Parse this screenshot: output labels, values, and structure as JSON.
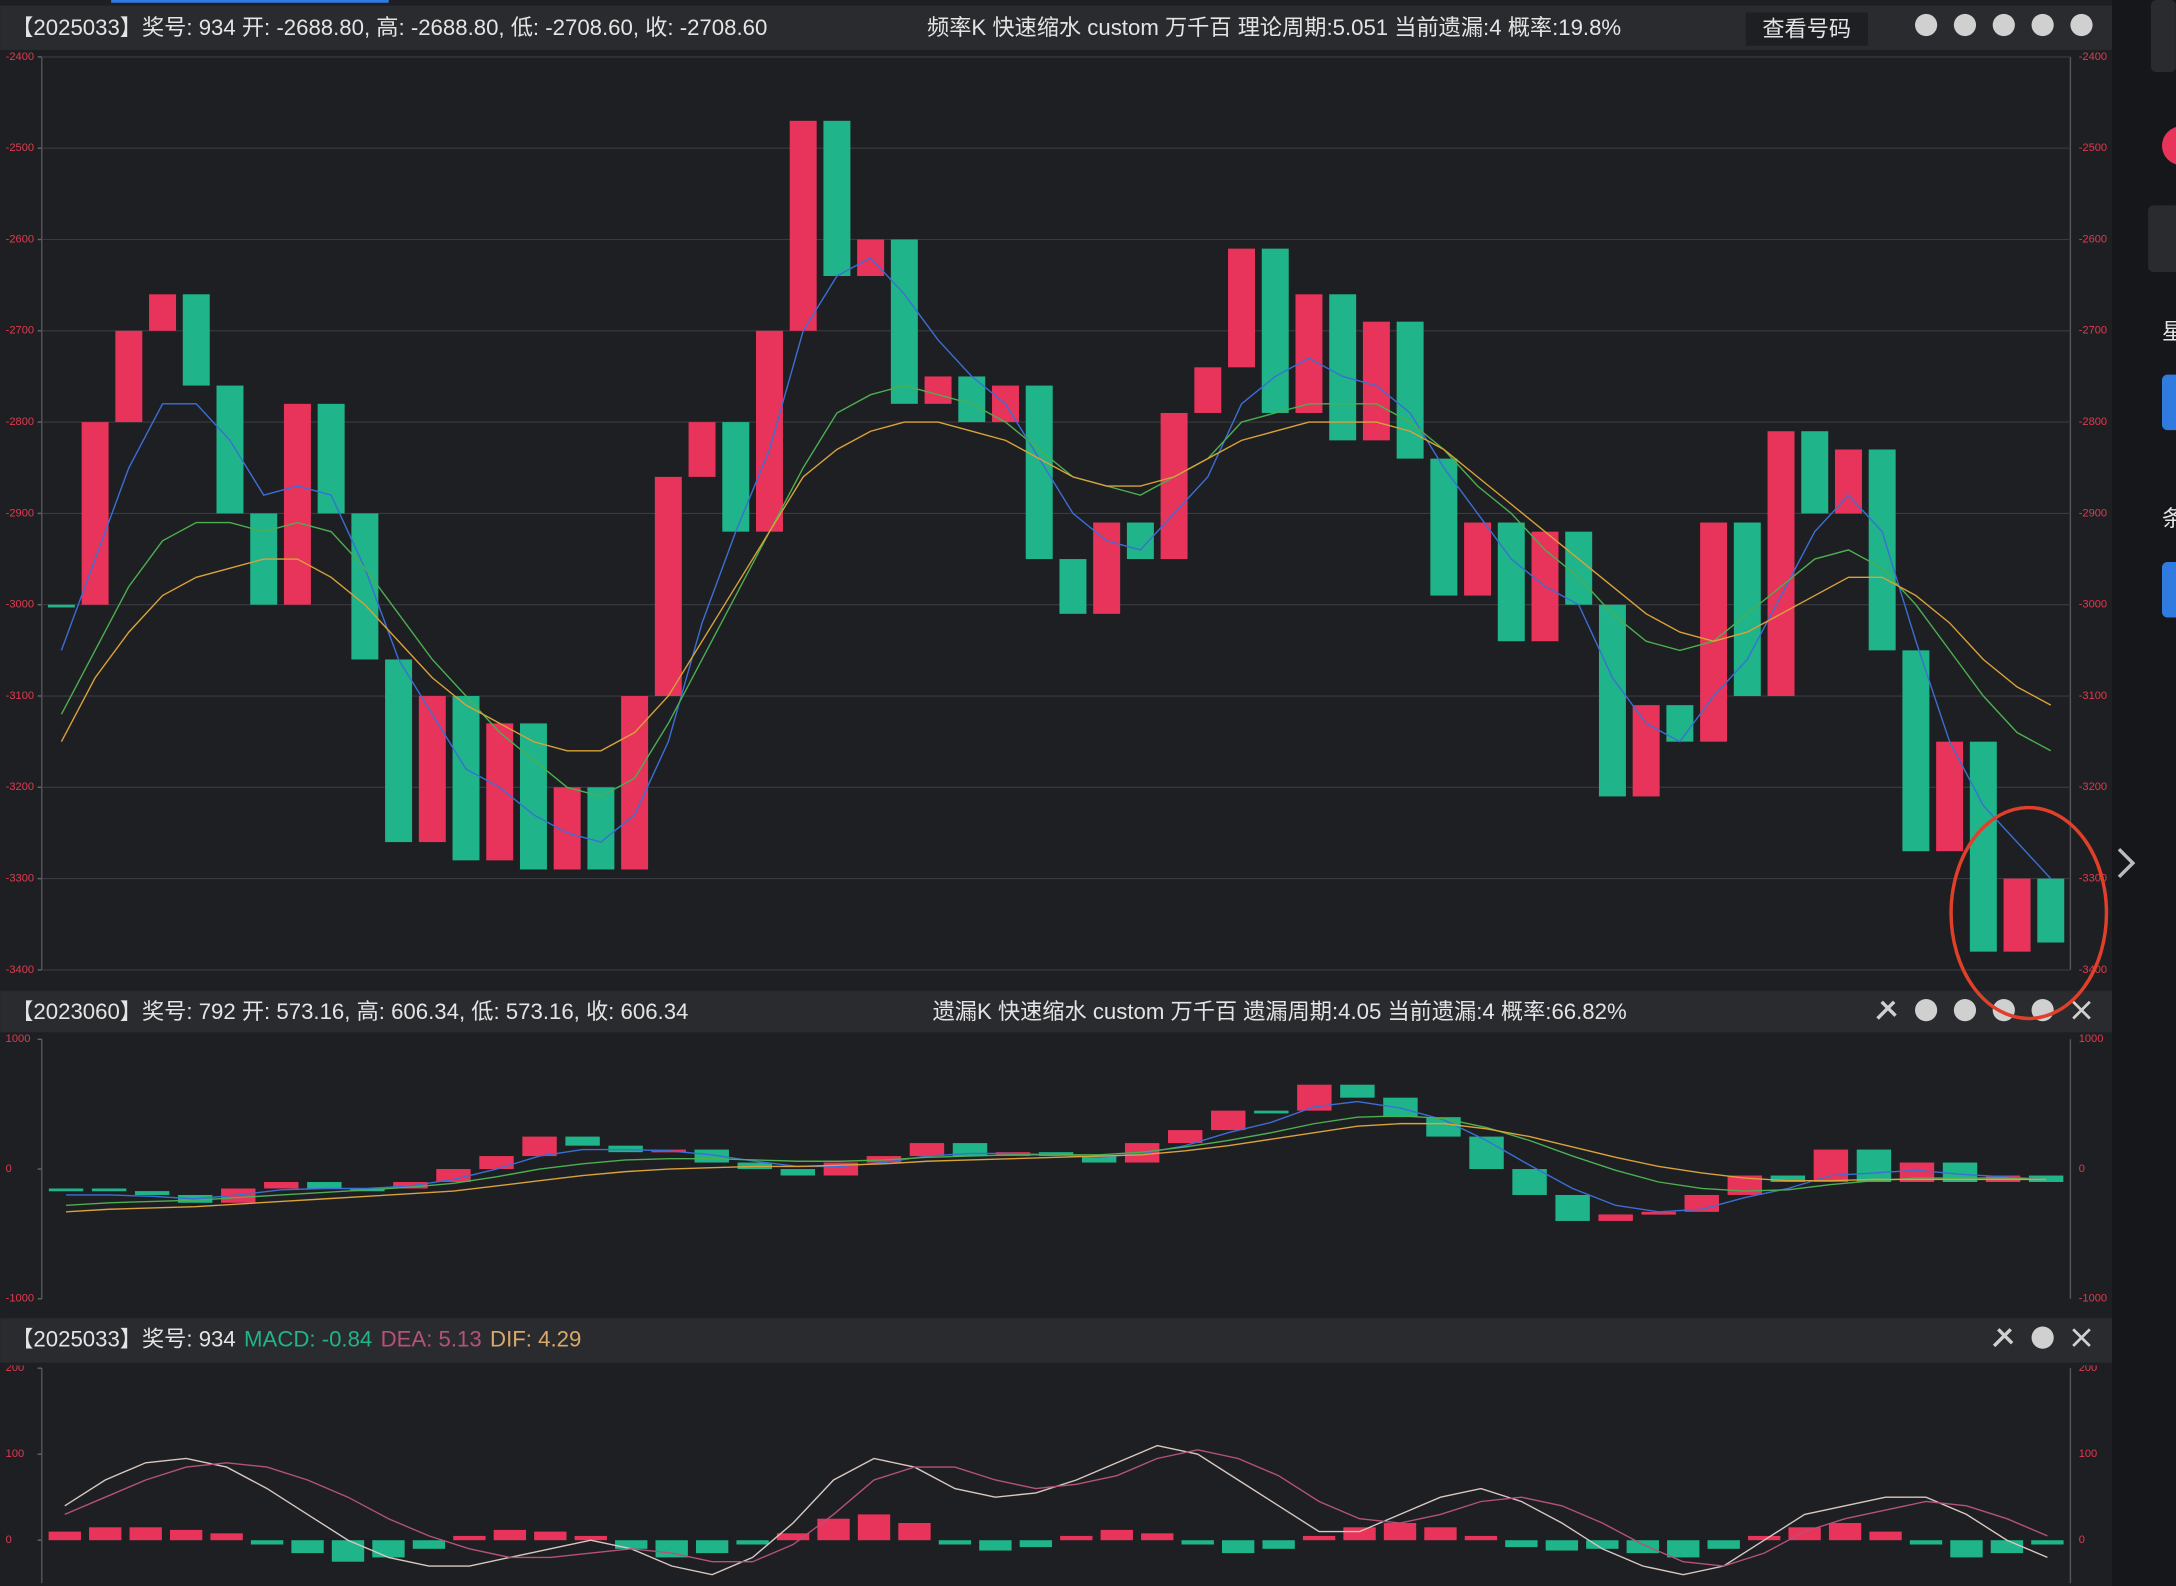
{
  "chart_data": [
    {
      "type": "step",
      "title": "【2025033】奖号: 934  开: -2688.80, 高: -2688.80, 低: -2708.60, 收: -2708.60",
      "subtitle": "频率K  快速缩水  custom  万千百  理论周期:5.051  当前遗漏:4  概率:19.8%",
      "button": "查看号码",
      "ylim": [
        -3400,
        -2400
      ],
      "yticks": [
        -2400,
        -2500,
        -2600,
        -2700,
        -2800,
        -2900,
        -3000,
        -3100,
        -3200,
        -3300,
        -3400
      ],
      "grid": true,
      "series": [
        {
          "up_color": "#e8335a",
          "down_color": "#1fb489",
          "values": [
            -3000,
            -2800,
            -2700,
            -2660,
            -2760,
            -2900,
            -3000,
            -2780,
            -2900,
            -3060,
            -3260,
            -3100,
            -3280,
            -3130,
            -3290,
            -3200,
            -3290,
            -3100,
            -2860,
            -2800,
            -2920,
            -2700,
            -2470,
            -2640,
            -2600,
            -2780,
            -2750,
            -2800,
            -2760,
            -2950,
            -3010,
            -2910,
            -2950,
            -2790,
            -2740,
            -2610,
            -2790,
            -2660,
            -2820,
            -2690,
            -2840,
            -2990,
            -2910,
            -3040,
            -2920,
            -3000,
            -3210,
            -3110,
            -3150,
            -2910,
            -3100,
            -2810,
            -2900,
            -2830,
            -3050,
            -3270,
            -3150,
            -3380,
            -3300,
            -3370
          ]
        },
        {
          "color": "#3b6fd6",
          "values": [
            -3050,
            -2950,
            -2850,
            -2780,
            -2780,
            -2820,
            -2880,
            -2870,
            -2880,
            -2960,
            -3060,
            -3120,
            -3180,
            -3200,
            -3230,
            -3250,
            -3260,
            -3230,
            -3150,
            -3020,
            -2920,
            -2830,
            -2700,
            -2640,
            -2620,
            -2660,
            -2710,
            -2750,
            -2780,
            -2840,
            -2900,
            -2930,
            -2940,
            -2900,
            -2860,
            -2780,
            -2750,
            -2730,
            -2750,
            -2760,
            -2790,
            -2850,
            -2900,
            -2950,
            -2980,
            -3000,
            -3080,
            -3130,
            -3150,
            -3100,
            -3060,
            -2990,
            -2920,
            -2880,
            -2920,
            -3040,
            -3150,
            -3220,
            -3260,
            -3300
          ]
        },
        {
          "color": "#4caf50",
          "values": [
            -3120,
            -3050,
            -2980,
            -2930,
            -2910,
            -2910,
            -2920,
            -2910,
            -2920,
            -2960,
            -3010,
            -3060,
            -3100,
            -3140,
            -3170,
            -3200,
            -3210,
            -3190,
            -3130,
            -3060,
            -2990,
            -2920,
            -2850,
            -2790,
            -2770,
            -2760,
            -2770,
            -2780,
            -2800,
            -2830,
            -2860,
            -2870,
            -2880,
            -2860,
            -2840,
            -2800,
            -2790,
            -2780,
            -2780,
            -2780,
            -2800,
            -2830,
            -2870,
            -2900,
            -2940,
            -2970,
            -3010,
            -3040,
            -3050,
            -3040,
            -3010,
            -2980,
            -2950,
            -2940,
            -2960,
            -3000,
            -3050,
            -3100,
            -3140,
            -3160
          ]
        },
        {
          "color": "#d9a23a",
          "values": [
            -3150,
            -3080,
            -3030,
            -2990,
            -2970,
            -2960,
            -2950,
            -2950,
            -2970,
            -3000,
            -3040,
            -3080,
            -3110,
            -3130,
            -3150,
            -3160,
            -3160,
            -3140,
            -3100,
            -3040,
            -2980,
            -2920,
            -2860,
            -2830,
            -2810,
            -2800,
            -2800,
            -2810,
            -2820,
            -2840,
            -2860,
            -2870,
            -2870,
            -2860,
            -2840,
            -2820,
            -2810,
            -2800,
            -2800,
            -2800,
            -2810,
            -2830,
            -2860,
            -2890,
            -2920,
            -2950,
            -2980,
            -3010,
            -3030,
            -3040,
            -3030,
            -3010,
            -2990,
            -2970,
            -2970,
            -2990,
            -3020,
            -3060,
            -3090,
            -3110
          ]
        }
      ]
    },
    {
      "type": "step",
      "title": "【2023060】奖号: 792  开: 573.16, 高: 606.34, 低: 573.16, 收: 606.34",
      "subtitle": "遗漏K  快速缩水  custom  万千百  遗漏周期:4.05  当前遗漏:4  概率:66.82%",
      "ylim": [
        -1000,
        1000
      ],
      "yticks": [
        1000,
        0,
        -1000
      ],
      "grid": false,
      "series": [
        {
          "up_color": "#e8335a",
          "down_color": "#1fb489",
          "values": [
            -150,
            -170,
            -200,
            -260,
            -150,
            -100,
            -150,
            -150,
            -100,
            0,
            100,
            250,
            180,
            130,
            150,
            50,
            0,
            -50,
            50,
            100,
            200,
            100,
            130,
            100,
            50,
            200,
            300,
            450,
            450,
            650,
            550,
            400,
            250,
            0,
            -200,
            -400,
            -350,
            -330,
            -200,
            -50,
            -100,
            150,
            -100,
            50,
            -100,
            -50,
            -100
          ]
        },
        {
          "color": "#3b6fd6",
          "values": [
            -200,
            -200,
            -210,
            -230,
            -200,
            -160,
            -150,
            -150,
            -130,
            -80,
            0,
            100,
            150,
            150,
            140,
            110,
            60,
            20,
            20,
            50,
            100,
            120,
            120,
            110,
            90,
            120,
            180,
            280,
            360,
            480,
            520,
            470,
            380,
            220,
            30,
            -150,
            -280,
            -330,
            -310,
            -220,
            -150,
            -50,
            -30,
            -10,
            -40,
            -60,
            -80
          ]
        },
        {
          "color": "#4caf50",
          "values": [
            -280,
            -260,
            -250,
            -240,
            -220,
            -200,
            -180,
            -160,
            -140,
            -110,
            -60,
            0,
            40,
            70,
            80,
            80,
            70,
            60,
            60,
            70,
            90,
            100,
            110,
            110,
            110,
            130,
            170,
            220,
            280,
            350,
            400,
            410,
            390,
            320,
            220,
            100,
            -10,
            -100,
            -150,
            -170,
            -160,
            -120,
            -90,
            -70,
            -70,
            -70,
            -80
          ]
        },
        {
          "color": "#d9a23a",
          "values": [
            -330,
            -310,
            -300,
            -290,
            -270,
            -250,
            -230,
            -210,
            -190,
            -170,
            -130,
            -90,
            -50,
            -20,
            0,
            10,
            20,
            20,
            30,
            40,
            60,
            70,
            80,
            90,
            100,
            110,
            140,
            180,
            230,
            280,
            330,
            350,
            350,
            310,
            250,
            170,
            90,
            20,
            -30,
            -70,
            -90,
            -90,
            -80,
            -80,
            -80,
            -80,
            -80
          ]
        }
      ]
    },
    {
      "type": "macd",
      "title": "【2025033】奖号: 934",
      "indicators": [
        {
          "label": "MACD: -0.84",
          "color": "#1fb489"
        },
        {
          "label": "DEA: 5.13",
          "color": "#b4527a"
        },
        {
          "label": "DIF: 4.29",
          "color": "#d9a86a"
        }
      ],
      "ylim": [
        -50,
        200
      ],
      "yticks": [
        200,
        100,
        0
      ],
      "grid": false,
      "series": [
        {
          "up_color": "#e8335a",
          "down_color": "#1fb489",
          "values": [
            10,
            15,
            15,
            12,
            8,
            -5,
            -15,
            -25,
            -20,
            -10,
            5,
            12,
            10,
            5,
            -10,
            -20,
            -15,
            -5,
            8,
            25,
            30,
            20,
            -5,
            -12,
            -8,
            5,
            12,
            8,
            -5,
            -15,
            -10,
            5,
            15,
            20,
            15,
            5,
            -8,
            -12,
            -10,
            -15,
            -20,
            -10,
            5,
            15,
            20,
            10,
            -5,
            -20,
            -15,
            -5
          ]
        },
        {
          "color": "#d8c8c0",
          "values": [
            40,
            70,
            90,
            95,
            85,
            60,
            30,
            0,
            -20,
            -30,
            -30,
            -20,
            -10,
            0,
            -10,
            -30,
            -40,
            -20,
            20,
            70,
            95,
            85,
            60,
            50,
            55,
            70,
            90,
            110,
            100,
            70,
            40,
            10,
            10,
            30,
            50,
            60,
            45,
            20,
            -10,
            -30,
            -40,
            -30,
            0,
            30,
            40,
            50,
            50,
            30,
            0,
            -20
          ]
        },
        {
          "color": "#b4527a",
          "values": [
            30,
            50,
            70,
            85,
            90,
            85,
            70,
            50,
            25,
            5,
            -10,
            -20,
            -20,
            -15,
            -10,
            -15,
            -25,
            -25,
            -5,
            30,
            70,
            85,
            85,
            70,
            60,
            65,
            75,
            95,
            105,
            95,
            75,
            45,
            25,
            20,
            30,
            45,
            50,
            40,
            20,
            -5,
            -25,
            -30,
            -15,
            10,
            25,
            35,
            45,
            40,
            25,
            5
          ]
        }
      ]
    }
  ],
  "sidebar": {
    "labels": [
      "星",
      "条"
    ]
  }
}
